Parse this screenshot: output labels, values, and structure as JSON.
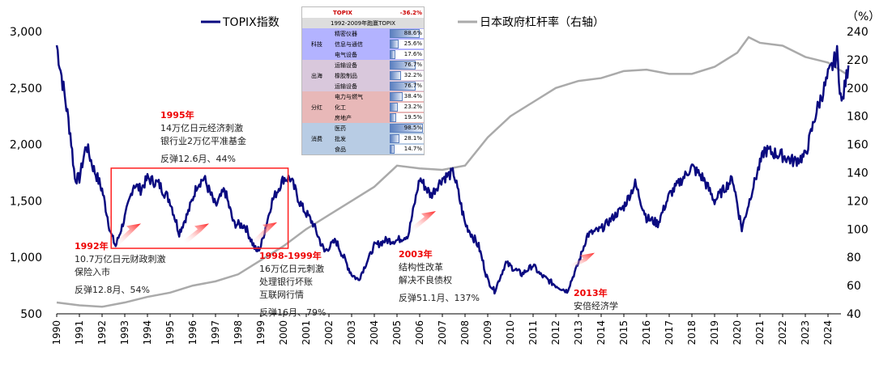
{
  "chart_data": {
    "type": "line",
    "legend": [
      "TOPIX指数",
      "日本政府杠杆率（右轴）"
    ],
    "legend_placement": "top",
    "right_axis_unit": "（%）",
    "xlim": [
      1990,
      2024.9
    ],
    "xticks": [
      1990,
      1991,
      1992,
      1993,
      1994,
      1995,
      1996,
      1997,
      1998,
      1999,
      2000,
      2001,
      2002,
      2003,
      2004,
      2005,
      2006,
      2007,
      2008,
      2009,
      2010,
      2011,
      2012,
      2013,
      2014,
      2015,
      2016,
      2017,
      2018,
      2019,
      2020,
      2021,
      2022,
      2023,
      2024
    ],
    "ylim_left": [
      500,
      3000
    ],
    "yticks_left": [
      "500",
      "1,000",
      "1,500",
      "2,000",
      "2,500",
      "3,000"
    ],
    "ylim_right": [
      40,
      240
    ],
    "yticks_right": [
      "40",
      "60",
      "80",
      "100",
      "120",
      "140",
      "160",
      "180",
      "200",
      "220",
      "240"
    ],
    "colors": {
      "topix": "#0a0a80",
      "leverage": "#aaaaaa",
      "highlight": "#ff2020"
    },
    "series": [
      {
        "name": "TOPIX指数",
        "axis": "left",
        "points": [
          [
            1990.0,
            2880
          ],
          [
            1990.3,
            2500
          ],
          [
            1990.6,
            2100
          ],
          [
            1990.8,
            1700
          ],
          [
            1991.0,
            1700
          ],
          [
            1991.3,
            2000
          ],
          [
            1991.6,
            1800
          ],
          [
            1992.0,
            1600
          ],
          [
            1992.4,
            1200
          ],
          [
            1992.6,
            1100
          ],
          [
            1993.0,
            1350
          ],
          [
            1993.4,
            1650
          ],
          [
            1993.7,
            1600
          ],
          [
            1994.0,
            1700
          ],
          [
            1994.5,
            1650
          ],
          [
            1995.0,
            1500
          ],
          [
            1995.4,
            1220
          ],
          [
            1995.8,
            1400
          ],
          [
            1996.2,
            1650
          ],
          [
            1996.5,
            1700
          ],
          [
            1997.0,
            1450
          ],
          [
            1997.4,
            1600
          ],
          [
            1997.8,
            1300
          ],
          [
            1998.3,
            1280
          ],
          [
            1998.8,
            1050
          ],
          [
            1999.0,
            1100
          ],
          [
            1999.5,
            1500
          ],
          [
            2000.0,
            1700
          ],
          [
            2000.3,
            1700
          ],
          [
            2000.8,
            1450
          ],
          [
            2001.3,
            1300
          ],
          [
            2001.8,
            1050
          ],
          [
            2002.3,
            1150
          ],
          [
            2003.0,
            850
          ],
          [
            2003.3,
            800
          ],
          [
            2004.0,
            1100
          ],
          [
            2004.5,
            1150
          ],
          [
            2005.0,
            1150
          ],
          [
            2005.5,
            1200
          ],
          [
            2006.0,
            1700
          ],
          [
            2006.5,
            1550
          ],
          [
            2007.0,
            1700
          ],
          [
            2007.5,
            1750
          ],
          [
            2008.0,
            1300
          ],
          [
            2008.6,
            1100
          ],
          [
            2009.0,
            800
          ],
          [
            2009.3,
            700
          ],
          [
            2009.8,
            950
          ],
          [
            2010.5,
            850
          ],
          [
            2011.0,
            930
          ],
          [
            2011.3,
            850
          ],
          [
            2012.0,
            750
          ],
          [
            2012.5,
            700
          ],
          [
            2013.0,
            950
          ],
          [
            2013.4,
            1200
          ],
          [
            2014.0,
            1250
          ],
          [
            2015.0,
            1450
          ],
          [
            2015.5,
            1650
          ],
          [
            2016.0,
            1350
          ],
          [
            2016.5,
            1300
          ],
          [
            2017.0,
            1550
          ],
          [
            2018.0,
            1800
          ],
          [
            2018.5,
            1700
          ],
          [
            2019.0,
            1500
          ],
          [
            2019.8,
            1700
          ],
          [
            2020.2,
            1250
          ],
          [
            2020.8,
            1700
          ],
          [
            2021.2,
            1950
          ],
          [
            2022.0,
            1900
          ],
          [
            2022.5,
            1850
          ],
          [
            2023.0,
            1900
          ],
          [
            2023.5,
            2300
          ],
          [
            2024.0,
            2600
          ],
          [
            2024.4,
            2800
          ],
          [
            2024.6,
            2350
          ],
          [
            2024.9,
            2700
          ]
        ]
      },
      {
        "name": "日本政府杠杆率（右轴）",
        "axis": "right",
        "points": [
          [
            1990,
            48
          ],
          [
            1991,
            46
          ],
          [
            1992,
            45
          ],
          [
            1993,
            48
          ],
          [
            1994,
            52
          ],
          [
            1995,
            55
          ],
          [
            1996,
            60
          ],
          [
            1997,
            63
          ],
          [
            1998,
            68
          ],
          [
            1999,
            78
          ],
          [
            2000,
            88
          ],
          [
            2001,
            100
          ],
          [
            2002,
            110
          ],
          [
            2003,
            120
          ],
          [
            2004,
            130
          ],
          [
            2005,
            145
          ],
          [
            2006,
            143
          ],
          [
            2007,
            142
          ],
          [
            2008,
            145
          ],
          [
            2009,
            165
          ],
          [
            2010,
            180
          ],
          [
            2011,
            190
          ],
          [
            2012,
            200
          ],
          [
            2013,
            205
          ],
          [
            2014,
            207
          ],
          [
            2015,
            212
          ],
          [
            2016,
            213
          ],
          [
            2017,
            210
          ],
          [
            2018,
            210
          ],
          [
            2019,
            215
          ],
          [
            2020,
            225
          ],
          [
            2020.5,
            236
          ],
          [
            2021,
            232
          ],
          [
            2022,
            230
          ],
          [
            2023,
            222
          ],
          [
            2024,
            218
          ],
          [
            2024.8,
            210
          ]
        ]
      }
    ],
    "highlight_box": {
      "x": [
        1992.4,
        2000.2
      ],
      "y": [
        1080,
        1790
      ]
    },
    "arrows": [
      [
        1993.0,
        1100,
        1300
      ],
      [
        1996.0,
        1120,
        1300
      ],
      [
        1999.0,
        1110,
        1310
      ],
      [
        2006.0,
        1230,
        1410
      ],
      [
        2013.0,
        900,
        1040
      ]
    ],
    "annotations": [
      {
        "year": "1992年",
        "lines": [
          "10.7万亿日元财政刺激",
          "保险入市"
        ],
        "rebound": "反弹12.8月、54%"
      },
      {
        "year": "1995年",
        "lines": [
          "14万亿日元经济刺激",
          "银行业2万亿平准基金"
        ],
        "rebound": "反弹12.6月、44%"
      },
      {
        "year": "1998-1999年",
        "lines": [
          "16万亿日元刺激",
          "处理银行坏账",
          "互联网行情"
        ],
        "rebound": "反弹16月、79%"
      },
      {
        "year": "2003年",
        "lines": [
          "结构性改革",
          "解决不良债权"
        ],
        "rebound": "反弹51.1月、137%"
      },
      {
        "year": "2013年",
        "lines": [
          "安倍经济学"
        ],
        "rebound": ""
      }
    ]
  },
  "inset": {
    "header_label": "TOPIX",
    "header_value": "-36.2%",
    "subtitle": "1992-2009年跑赢TOPIX",
    "groups": [
      {
        "name": "科技",
        "color": "#b3b3ff",
        "items": [
          {
            "name": "精密仪器",
            "value": "88.6%",
            "pct": 88.6
          },
          {
            "name": "信息与通信",
            "value": "25.6%",
            "pct": 25.6
          },
          {
            "name": "电气设备",
            "value": "17.6%",
            "pct": 17.6
          }
        ]
      },
      {
        "name": "出海",
        "color": "#d9c8dc",
        "items": [
          {
            "name": "运输设备",
            "value": "76.7%",
            "pct": 76.7
          },
          {
            "name": "橡胶制品",
            "value": "32.2%",
            "pct": 32.2
          },
          {
            "name": "运输设备",
            "value": "76.7%",
            "pct": 76.7
          }
        ]
      },
      {
        "name": "分红",
        "color": "#e8b8b8",
        "items": [
          {
            "name": "电力与燃气",
            "value": "38.4%",
            "pct": 38.4
          },
          {
            "name": "化工",
            "value": "23.2%",
            "pct": 23.2
          },
          {
            "name": "房地产",
            "value": "19.5%",
            "pct": 19.5
          }
        ]
      },
      {
        "name": "消费",
        "color": "#b8cce4",
        "items": [
          {
            "name": "医药",
            "value": "98.5%",
            "pct": 98.5
          },
          {
            "name": "批发",
            "value": "28.1%",
            "pct": 28.1
          },
          {
            "name": "食品",
            "value": "14.7%",
            "pct": 14.7
          }
        ]
      }
    ]
  }
}
